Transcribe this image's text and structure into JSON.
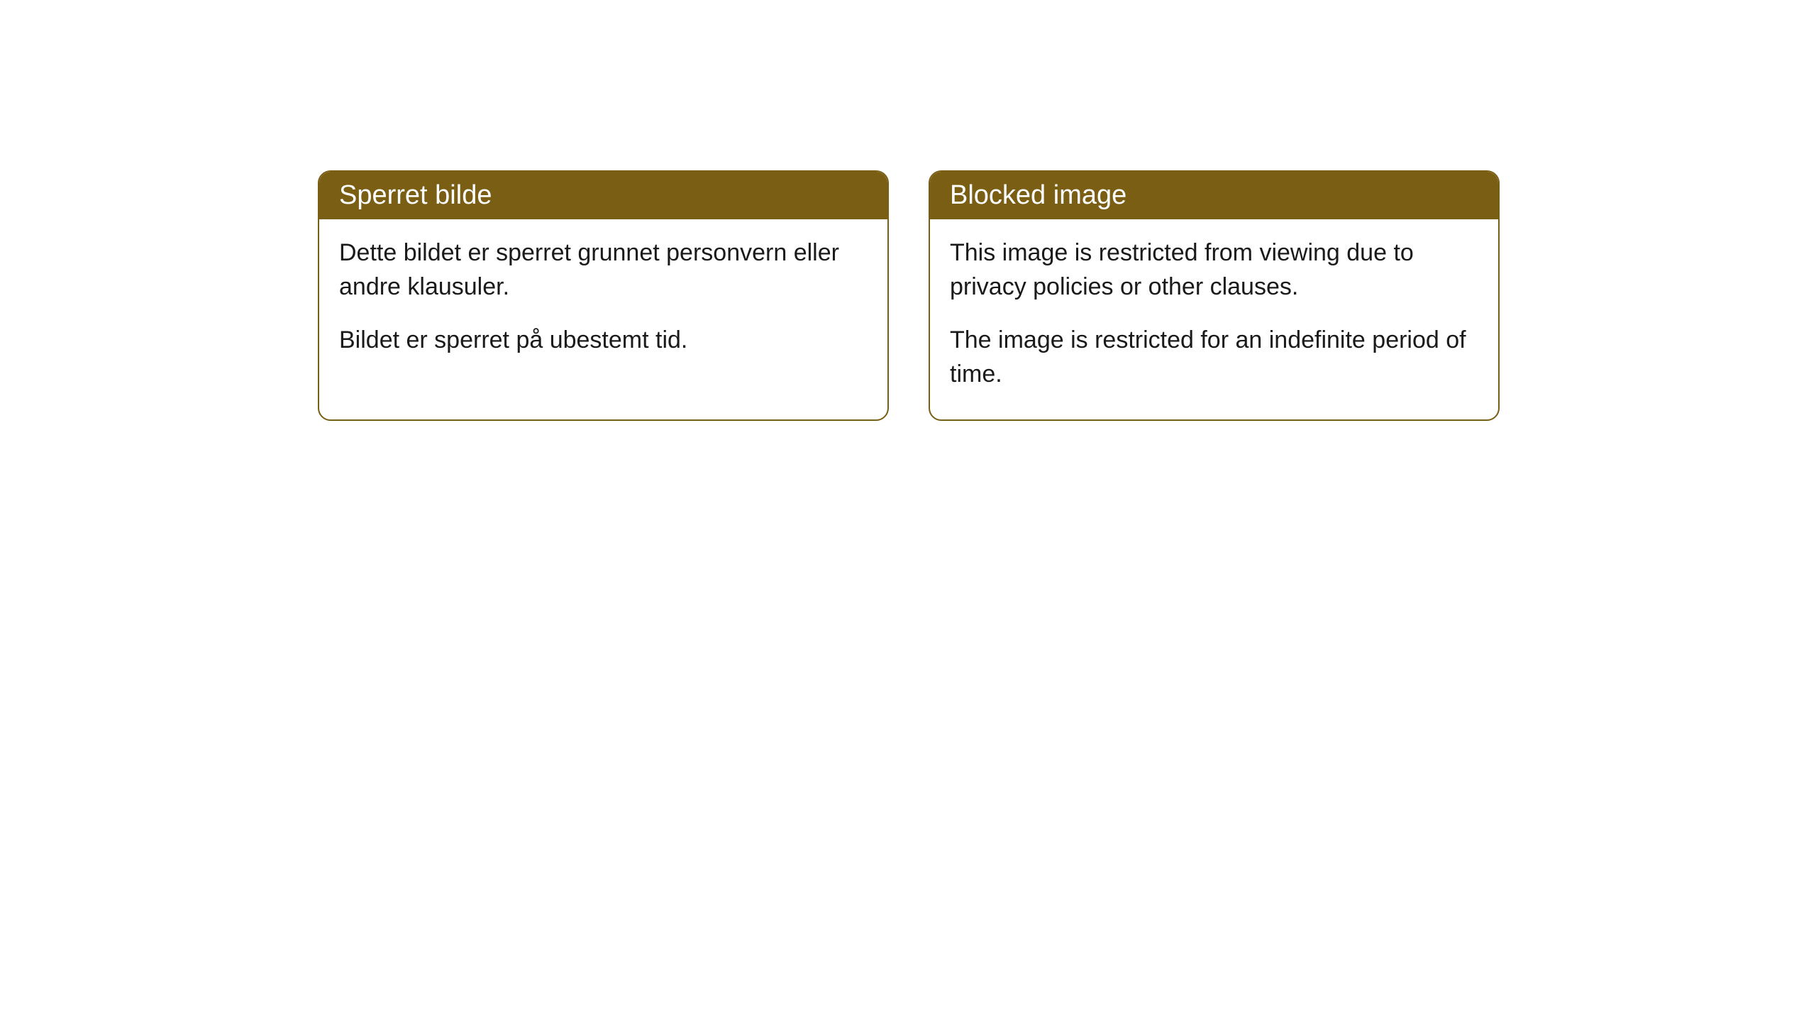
{
  "cards": [
    {
      "title": "Sperret bilde",
      "paragraph1": "Dette bildet er sperret grunnet personvern eller andre klausuler.",
      "paragraph2": "Bildet er sperret på ubestemt tid."
    },
    {
      "title": "Blocked image",
      "paragraph1": "This image is restricted from viewing due to privacy policies or other clauses.",
      "paragraph2": "The image is restricted for an indefinite period of time."
    }
  ],
  "styling": {
    "header_bg_color": "#7a5e14",
    "header_text_color": "#ffffff",
    "border_color": "#7a5e14",
    "body_bg_color": "#ffffff",
    "body_text_color": "#1a1a1a",
    "border_radius": "18px",
    "title_fontsize": "38px",
    "body_fontsize": "34px"
  }
}
